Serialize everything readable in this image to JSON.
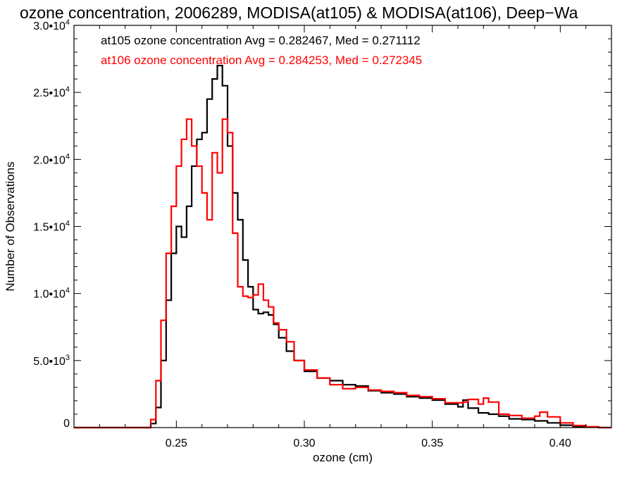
{
  "chart_data": {
    "type": "line",
    "step": true,
    "title": "ozone concentration, 2006289, MODISA(at105) & MODISA(at106), Deep−Wa",
    "xlabel": "ozone (cm)",
    "ylabel": "Number of Observations",
    "xlim": [
      0.21,
      0.42
    ],
    "ylim": [
      0,
      30000
    ],
    "x_ticks": [
      0.25,
      0.3,
      0.35,
      0.4
    ],
    "x_tick_labels": [
      "0.25",
      "0.30",
      "0.35",
      "0.40"
    ],
    "y_ticks": [
      {
        "value": 0,
        "mantissa": "0",
        "exp": ""
      },
      {
        "value": 5000,
        "mantissa": "5.0•10",
        "exp": "3"
      },
      {
        "value": 10000,
        "mantissa": "1.0•10",
        "exp": "4"
      },
      {
        "value": 15000,
        "mantissa": "1.5•10",
        "exp": "4"
      },
      {
        "value": 20000,
        "mantissa": "2.0•10",
        "exp": "4"
      },
      {
        "value": 25000,
        "mantissa": "2.5•10",
        "exp": "4"
      },
      {
        "value": 30000,
        "mantissa": "3.0•10",
        "exp": "4"
      }
    ],
    "legend_placement": "top-left",
    "series": [
      {
        "name": "at105 ozone concentration Avg = 0.282467, Med = 0.271112",
        "color": "#000000",
        "x": [
          0.21,
          0.238,
          0.24,
          0.242,
          0.244,
          0.246,
          0.248,
          0.25,
          0.252,
          0.254,
          0.256,
          0.258,
          0.26,
          0.262,
          0.264,
          0.266,
          0.268,
          0.27,
          0.272,
          0.274,
          0.276,
          0.278,
          0.28,
          0.282,
          0.284,
          0.286,
          0.288,
          0.29,
          0.293,
          0.296,
          0.3,
          0.305,
          0.31,
          0.315,
          0.32,
          0.325,
          0.33,
          0.335,
          0.34,
          0.345,
          0.35,
          0.355,
          0.36,
          0.362,
          0.364,
          0.368,
          0.372,
          0.376,
          0.38,
          0.385,
          0.39,
          0.395,
          0.4,
          0.405,
          0.41,
          0.415,
          0.42
        ],
        "values": [
          0,
          0,
          300,
          1500,
          5000,
          9500,
          13000,
          15000,
          14200,
          16500,
          19500,
          21500,
          22000,
          24500,
          26000,
          27000,
          25500,
          21000,
          17500,
          15500,
          12500,
          10500,
          8800,
          8500,
          8600,
          8400,
          7700,
          6700,
          5700,
          5000,
          4200,
          3700,
          3500,
          3200,
          3100,
          2750,
          2600,
          2500,
          2300,
          2200,
          2050,
          1750,
          1550,
          2050,
          1450,
          1100,
          1000,
          850,
          650,
          600,
          500,
          350,
          180,
          80,
          30,
          0,
          0
        ]
      },
      {
        "name": "at106 ozone concentration Avg = 0.284253, Med = 0.272345",
        "color": "#ff0000",
        "x": [
          0.21,
          0.238,
          0.24,
          0.242,
          0.244,
          0.246,
          0.248,
          0.25,
          0.252,
          0.254,
          0.256,
          0.258,
          0.26,
          0.262,
          0.264,
          0.266,
          0.268,
          0.27,
          0.272,
          0.274,
          0.276,
          0.278,
          0.28,
          0.282,
          0.284,
          0.286,
          0.288,
          0.29,
          0.293,
          0.296,
          0.3,
          0.305,
          0.31,
          0.315,
          0.32,
          0.325,
          0.33,
          0.335,
          0.34,
          0.345,
          0.35,
          0.355,
          0.36,
          0.362,
          0.364,
          0.368,
          0.37,
          0.372,
          0.376,
          0.38,
          0.385,
          0.39,
          0.392,
          0.395,
          0.4,
          0.405,
          0.41,
          0.415,
          0.42
        ],
        "values": [
          0,
          0,
          600,
          3500,
          8000,
          13000,
          16500,
          19500,
          21500,
          23000,
          21000,
          19500,
          17500,
          15500,
          20500,
          19000,
          23000,
          22000,
          14500,
          10500,
          9800,
          9700,
          9900,
          10700,
          9500,
          9000,
          7800,
          7300,
          6400,
          5000,
          4300,
          3700,
          3200,
          2900,
          3000,
          2800,
          2700,
          2600,
          2400,
          2300,
          2150,
          1850,
          1850,
          1900,
          2100,
          1750,
          2200,
          1900,
          1000,
          900,
          700,
          850,
          1150,
          800,
          350,
          150,
          60,
          0,
          0
        ]
      }
    ]
  }
}
